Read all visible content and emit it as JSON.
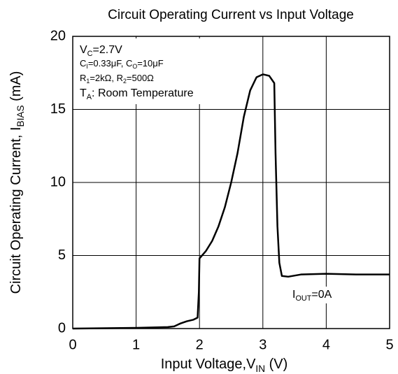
{
  "chart_data": {
    "type": "line",
    "title": "Circuit Operating Current vs Input Voltage",
    "xlabel": [
      "Input Voltage,V",
      "IN",
      " (V)"
    ],
    "ylabel": [
      "Circuit Operating Current, I",
      "BIAS",
      " (mA)"
    ],
    "annotations": [
      [
        "V",
        "C",
        "=2.7V"
      ],
      [
        "C",
        "I",
        "=0.33μF, C",
        "O",
        "=10μF"
      ],
      [
        "R",
        "1",
        "=2kΩ, R",
        "2",
        "=500Ω"
      ],
      [
        "T",
        "A",
        ": Room Temperature"
      ]
    ],
    "curve_label": [
      "I",
      "OUT",
      "=0A"
    ],
    "x": [
      0,
      1,
      1.5,
      1.6,
      1.7,
      1.8,
      1.9,
      1.97,
      1.99,
      2.0,
      2.1,
      2.2,
      2.3,
      2.4,
      2.5,
      2.6,
      2.7,
      2.8,
      2.9,
      3.0,
      3.1,
      3.18,
      3.2,
      3.23,
      3.26,
      3.3,
      3.4,
      3.6,
      4.0,
      4.5,
      5
    ],
    "series": [
      {
        "color": "#000000",
        "values": [
          0,
          0.05,
          0.1,
          0.15,
          0.35,
          0.5,
          0.6,
          0.75,
          2.5,
          4.8,
          5.3,
          6.0,
          7.0,
          8.3,
          10.0,
          12.0,
          14.5,
          16.3,
          17.2,
          17.4,
          17.3,
          16.8,
          12,
          7,
          4.5,
          3.6,
          3.55,
          3.7,
          3.75,
          3.7,
          3.7
        ]
      }
    ],
    "xlim": [
      0,
      5
    ],
    "xticks": [
      0,
      1,
      2,
      3,
      4,
      5
    ],
    "ylim": [
      0,
      20
    ],
    "yticks": [
      0,
      5,
      10,
      15,
      20
    ],
    "grid": true
  }
}
